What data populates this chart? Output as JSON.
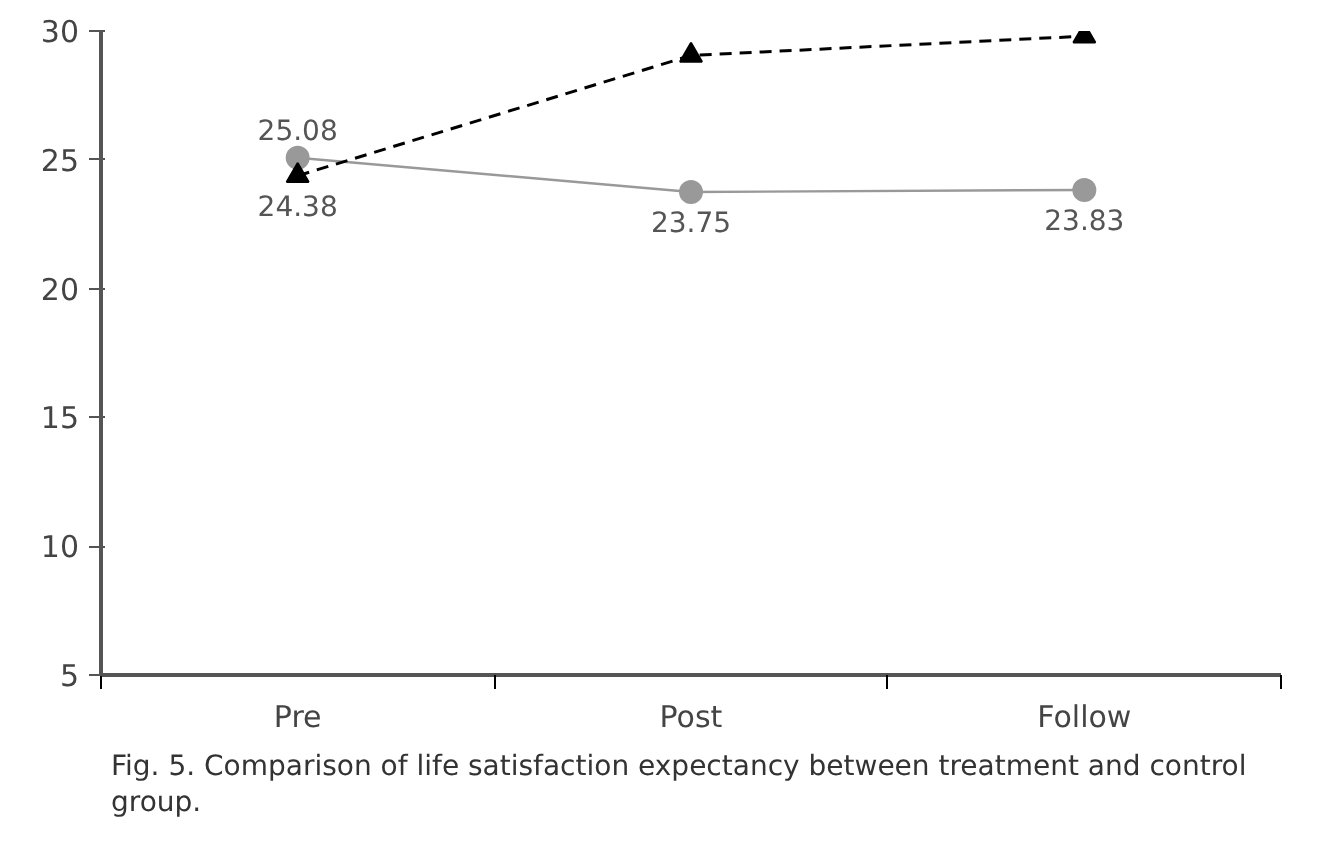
{
  "chart_data": {
    "type": "line",
    "categories": [
      "Pre",
      "Post",
      "Follow"
    ],
    "series": [
      {
        "color": "#999999",
        "values": [
          25.08,
          23.75,
          23.83
        ],
        "marker": "circle",
        "line_style": "solid",
        "value_labels": [
          "25.08",
          "23.75",
          "23.83"
        ]
      },
      {
        "color": "#000000",
        "values": [
          24.38,
          29.05,
          29.8
        ],
        "marker": "triangle",
        "line_style": "dashed",
        "value_labels": [
          "24.38",
          null,
          null
        ]
      }
    ],
    "ylim": [
      5,
      30
    ],
    "yticks": [
      5,
      10,
      15,
      20,
      25,
      30
    ],
    "grid": false,
    "annotations": [
      "Fig. 5. Comparison of life satisfaction expectancy between treatment and control group."
    ]
  }
}
